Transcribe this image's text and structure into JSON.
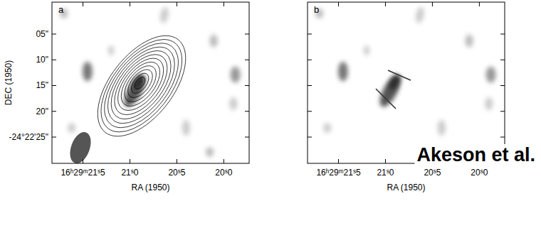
{
  "chart_data": [
    {
      "type": "image",
      "title": "a",
      "xlabel": "RA (1950)",
      "ylabel": "DEC (1950)",
      "xlim": [
        21.83,
        19.73
      ],
      "ylim": [
        30.1,
        -1.2
      ],
      "xticks": [
        {
          "value": 21.5,
          "label": "16ʰ29ᵐ21ˢ5"
        },
        {
          "value": 21.0,
          "label": "21ˢ0"
        },
        {
          "value": 20.5,
          "label": "20ˢ5"
        },
        {
          "value": 20.0,
          "label": "20ˢ0"
        }
      ],
      "yticks": [
        {
          "value": 5,
          "label": "05\""
        },
        {
          "value": 10,
          "label": "10\""
        },
        {
          "value": 15,
          "label": "15\""
        },
        {
          "value": 20,
          "label": "20\""
        },
        {
          "value": 25,
          "label": "-24°22'25\""
        }
      ]
    },
    {
      "type": "image",
      "title": "b",
      "xlabel": "RA (1950)",
      "xlim": [
        21.83,
        19.73
      ],
      "ylim": [
        30.1,
        -1.2
      ],
      "xticks": [
        {
          "value": 21.5,
          "label": "16ʰ29ᵐ21ˢ5"
        },
        {
          "value": 21.0,
          "label": "21ˢ0"
        },
        {
          "value": 20.5,
          "label": "20ˢ5"
        },
        {
          "value": 20.0,
          "label": "20ˢ0"
        }
      ],
      "yticks": [
        5,
        10,
        15,
        20,
        25
      ],
      "tick_labels": "x",
      "annotations": [
        "Akeson et al."
      ]
    }
  ]
}
